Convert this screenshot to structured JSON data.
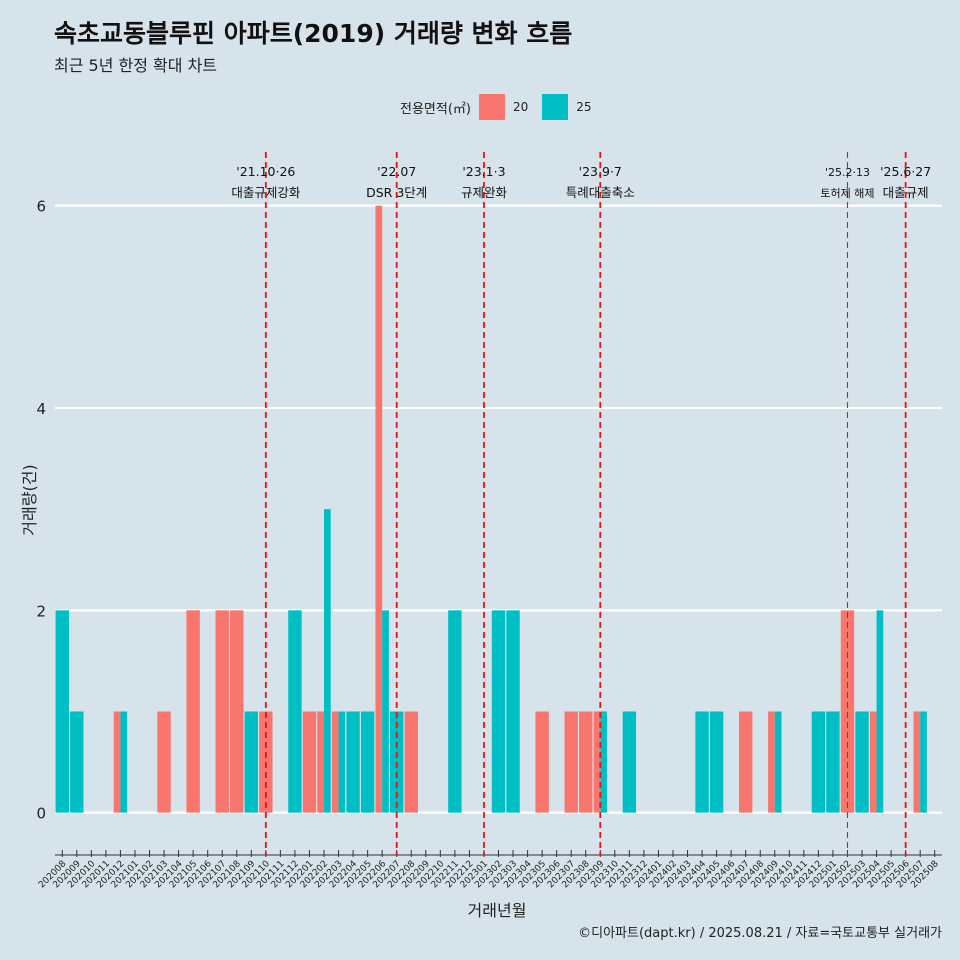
{
  "title": "속초교동블루핀 아파트(2019) 거래량 변화 흐름",
  "subtitle": "최근 5년 한정 확대 차트",
  "caption": "©디아파트(dapt.kr) / 2025.08.21 / 자료=국토교통부 실거래가",
  "colors": {
    "background": "#d6e3ea",
    "s20": "#f8766d",
    "s25": "#00bfc4",
    "event": "#ee1111"
  },
  "chart_data": {
    "type": "bar",
    "title": "속초교동블루핀 아파트(2019) 거래량 변화 흐름",
    "subtitle": "최근 5년 한정 확대 차트",
    "xlabel": "거래년월",
    "ylabel": "거래량(건)",
    "ylim": [
      -0.3,
      6.6
    ],
    "yticks": [
      0,
      2,
      4,
      6
    ],
    "grid": true,
    "legend": {
      "title": "전용면적(㎡)",
      "placement": "top"
    },
    "categories": [
      "202008",
      "202009",
      "202010",
      "202011",
      "202012",
      "202101",
      "202102",
      "202103",
      "202104",
      "202105",
      "202106",
      "202107",
      "202108",
      "202109",
      "202110",
      "202111",
      "202112",
      "202201",
      "202202",
      "202203",
      "202204",
      "202205",
      "202206",
      "202207",
      "202208",
      "202209",
      "202210",
      "202211",
      "202212",
      "202301",
      "202302",
      "202303",
      "202304",
      "202305",
      "202306",
      "202307",
      "202308",
      "202309",
      "202310",
      "202311",
      "202312",
      "202401",
      "202402",
      "202403",
      "202404",
      "202405",
      "202406",
      "202407",
      "202408",
      "202409",
      "202410",
      "202411",
      "202412",
      "202501",
      "202502",
      "202503",
      "202504",
      "202505",
      "202506",
      "202507",
      "202508"
    ],
    "series": [
      {
        "name": "20",
        "color": "#f8766d",
        "values": [
          0,
          0,
          0,
          0,
          1,
          0,
          0,
          1,
          0,
          2,
          0,
          2,
          2,
          0,
          1,
          0,
          0,
          1,
          1,
          1,
          0,
          0,
          6,
          0,
          1,
          0,
          0,
          0,
          0,
          0,
          0,
          0,
          0,
          1,
          0,
          1,
          1,
          1,
          0,
          0,
          0,
          0,
          0,
          0,
          0,
          0,
          0,
          1,
          0,
          1,
          0,
          0,
          0,
          0,
          2,
          0,
          1,
          0,
          0,
          1,
          0
        ]
      },
      {
        "name": "25",
        "color": "#00bfc4",
        "values": [
          2,
          1,
          0,
          0,
          1,
          0,
          0,
          0,
          0,
          0,
          0,
          0,
          0,
          1,
          0,
          0,
          2,
          0,
          3,
          1,
          1,
          1,
          2,
          1,
          0,
          0,
          0,
          2,
          0,
          0,
          2,
          2,
          0,
          0,
          0,
          0,
          0,
          1,
          0,
          1,
          0,
          0,
          0,
          0,
          1,
          1,
          0,
          0,
          0,
          1,
          0,
          0,
          1,
          1,
          0,
          1,
          2,
          0,
          0,
          1,
          0
        ]
      }
    ],
    "events": [
      {
        "month": "202110",
        "date": "'21.10·26",
        "label": "대출규제강화",
        "major": true
      },
      {
        "month": "202207",
        "date": "'22.07",
        "label": "DSR 3단계",
        "major": true
      },
      {
        "month": "202301",
        "date": "'23.1·3",
        "label": "규제완화",
        "major": true
      },
      {
        "month": "202309",
        "date": "'23.9·7",
        "label": "특례대출축소",
        "major": true
      },
      {
        "month": "202502",
        "date": "'25.2·13",
        "label": "토허제 해제",
        "major": false
      },
      {
        "month": "202506",
        "date": "'25.6·27",
        "label": "대출규제",
        "major": true
      }
    ]
  }
}
